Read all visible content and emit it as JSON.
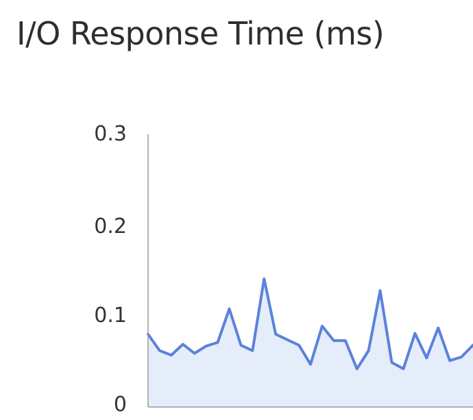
{
  "chart_data": {
    "type": "area",
    "title": "I/O Response Time (ms)",
    "xlabel": "",
    "ylabel": "",
    "ylim": [
      0,
      0.3
    ],
    "yticks": [
      "0",
      "0.1",
      "0.2",
      "0.3"
    ],
    "grid": false,
    "legend": "none",
    "colors": {
      "line": "#5b82db",
      "fill": "#e6edfa",
      "axis": "#9a9a9a"
    },
    "series": [
      {
        "values": [
          0.08,
          0.062,
          0.057,
          0.069,
          0.059,
          0.067,
          0.071,
          0.108,
          0.068,
          0.062,
          0.141,
          0.08,
          0.074,
          0.068,
          0.047,
          0.089,
          0.073,
          0.073,
          0.042,
          0.062,
          0.128,
          0.049,
          0.042,
          0.081,
          0.054,
          0.087,
          0.051,
          0.055,
          0.068
        ]
      }
    ]
  }
}
